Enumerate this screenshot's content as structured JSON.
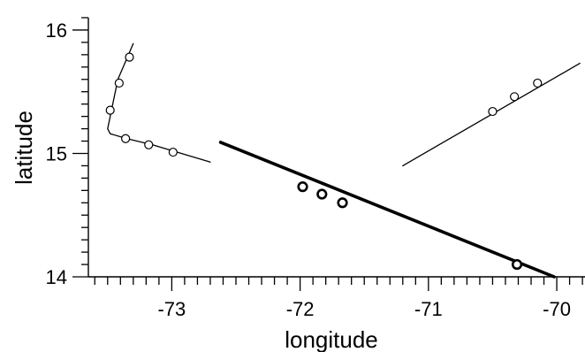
{
  "chart_data": {
    "type": "line",
    "xlabel": "longitude",
    "ylabel": "latitude",
    "xlim": [
      -73.65,
      -69.78
    ],
    "ylim": [
      14.0,
      16.1
    ],
    "x_ticks_major": [
      -73,
      -72,
      -71,
      -70
    ],
    "x_tick_labels": [
      "-73",
      "-72",
      "-71",
      "-70"
    ],
    "y_ticks_major": [
      14,
      15,
      16
    ],
    "y_tick_labels": [
      "14",
      "15",
      "16"
    ],
    "minor_tick_step": 0.1,
    "grid": false,
    "series": [
      {
        "style": "thin",
        "line": [
          [
            -73.3,
            15.89
          ],
          [
            -73.42,
            15.6
          ],
          [
            -73.5,
            15.2
          ],
          [
            -73.48,
            15.16
          ],
          [
            -73.35,
            15.12
          ],
          [
            -73.15,
            15.07
          ],
          [
            -72.7,
            14.93
          ]
        ],
        "markers": [
          [
            -73.33,
            15.78
          ],
          [
            -73.41,
            15.57
          ],
          [
            -73.48,
            15.35
          ],
          [
            -73.36,
            15.12
          ],
          [
            -73.18,
            15.07
          ],
          [
            -72.99,
            15.01
          ]
        ]
      },
      {
        "style": "thin",
        "line": [
          [
            -71.2,
            14.9
          ],
          [
            -69.82,
            15.73
          ]
        ],
        "markers": [
          [
            -70.5,
            15.34
          ],
          [
            -70.33,
            15.46
          ],
          [
            -70.15,
            15.57
          ]
        ]
      },
      {
        "style": "thick",
        "line": [
          [
            -72.62,
            15.09
          ],
          [
            -70.02,
            14.0
          ]
        ],
        "markers": [
          [
            -71.98,
            14.73
          ],
          [
            -71.83,
            14.67
          ],
          [
            -71.67,
            14.6
          ],
          [
            -70.31,
            14.1
          ]
        ]
      }
    ]
  }
}
